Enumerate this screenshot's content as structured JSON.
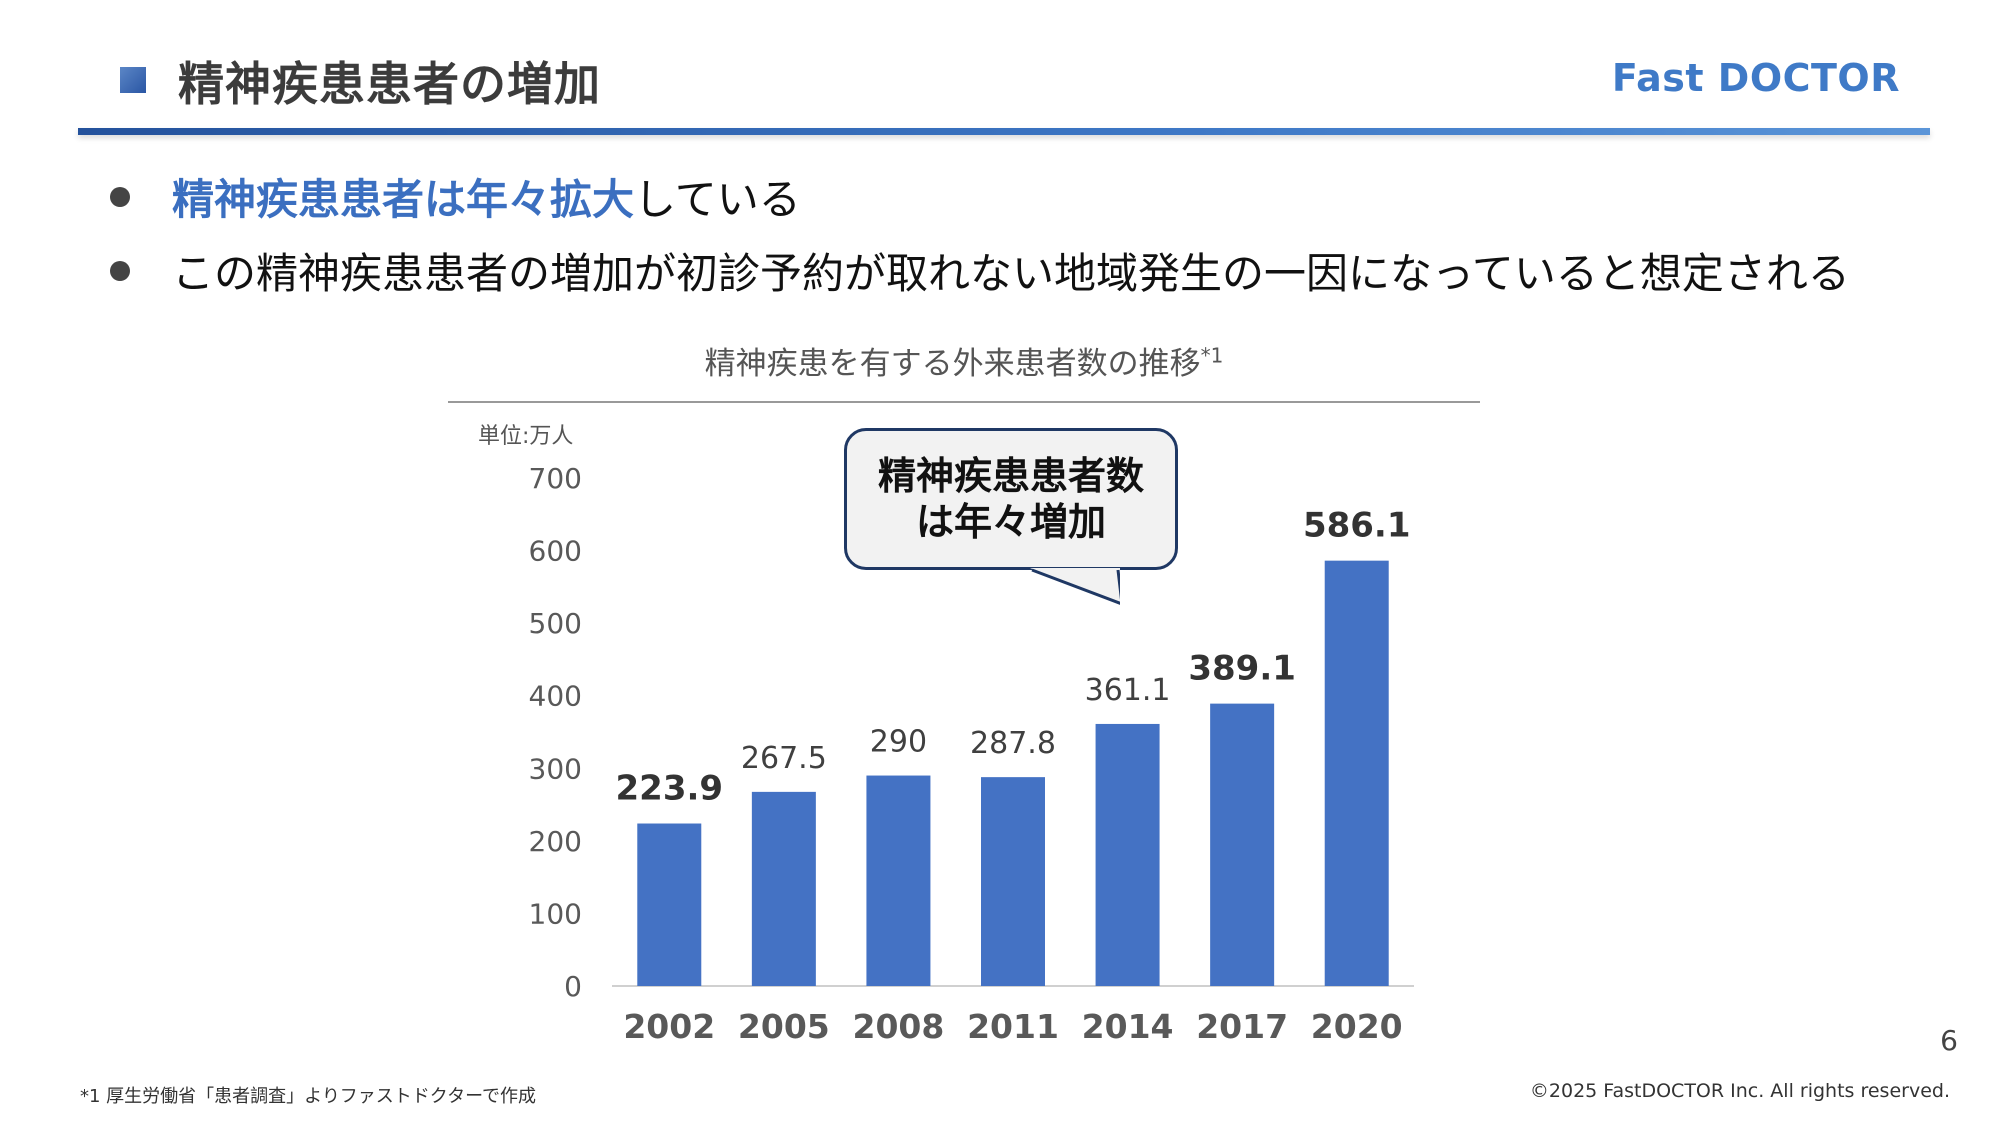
{
  "header": {
    "title": "精神疾患患者の増加",
    "logo": "Fast DOCTOR",
    "accent_color": "#3b6fc0"
  },
  "bullets": [
    {
      "highlight": "精神疾患患者は年々拡大",
      "rest": "している"
    },
    {
      "text": "この精神疾患患者の増加が初診予約が取れない地域発生の一因になっていると想定される"
    }
  ],
  "chart_data": {
    "type": "bar",
    "title": "精神疾患を有する外来患者数の推移",
    "title_sup": "*1",
    "unit_label": "単位:万人",
    "categories": [
      "2002",
      "2005",
      "2008",
      "2011",
      "2014",
      "2017",
      "2020"
    ],
    "values": [
      223.9,
      267.5,
      290,
      287.8,
      361.1,
      389.1,
      586.1
    ],
    "data_labels": [
      "223.9",
      "267.5",
      "290",
      "287.8",
      "361.1",
      "389.1",
      "586.1"
    ],
    "emphasized_labels": [
      true,
      false,
      false,
      false,
      false,
      true,
      true
    ],
    "ylim": [
      0,
      700
    ],
    "yticks": [
      0,
      100,
      200,
      300,
      400,
      500,
      600,
      700
    ],
    "bar_color": "#4472c4",
    "grid": false,
    "legend": false,
    "callout": [
      "精神疾患患者数",
      "は年々増加"
    ]
  },
  "footer": {
    "page_number": "6",
    "footnote": "*1 厚生労働省「患者調査」よりファストドクターで作成",
    "copyright": "©2025 FastDOCTOR Inc. All rights reserved."
  }
}
